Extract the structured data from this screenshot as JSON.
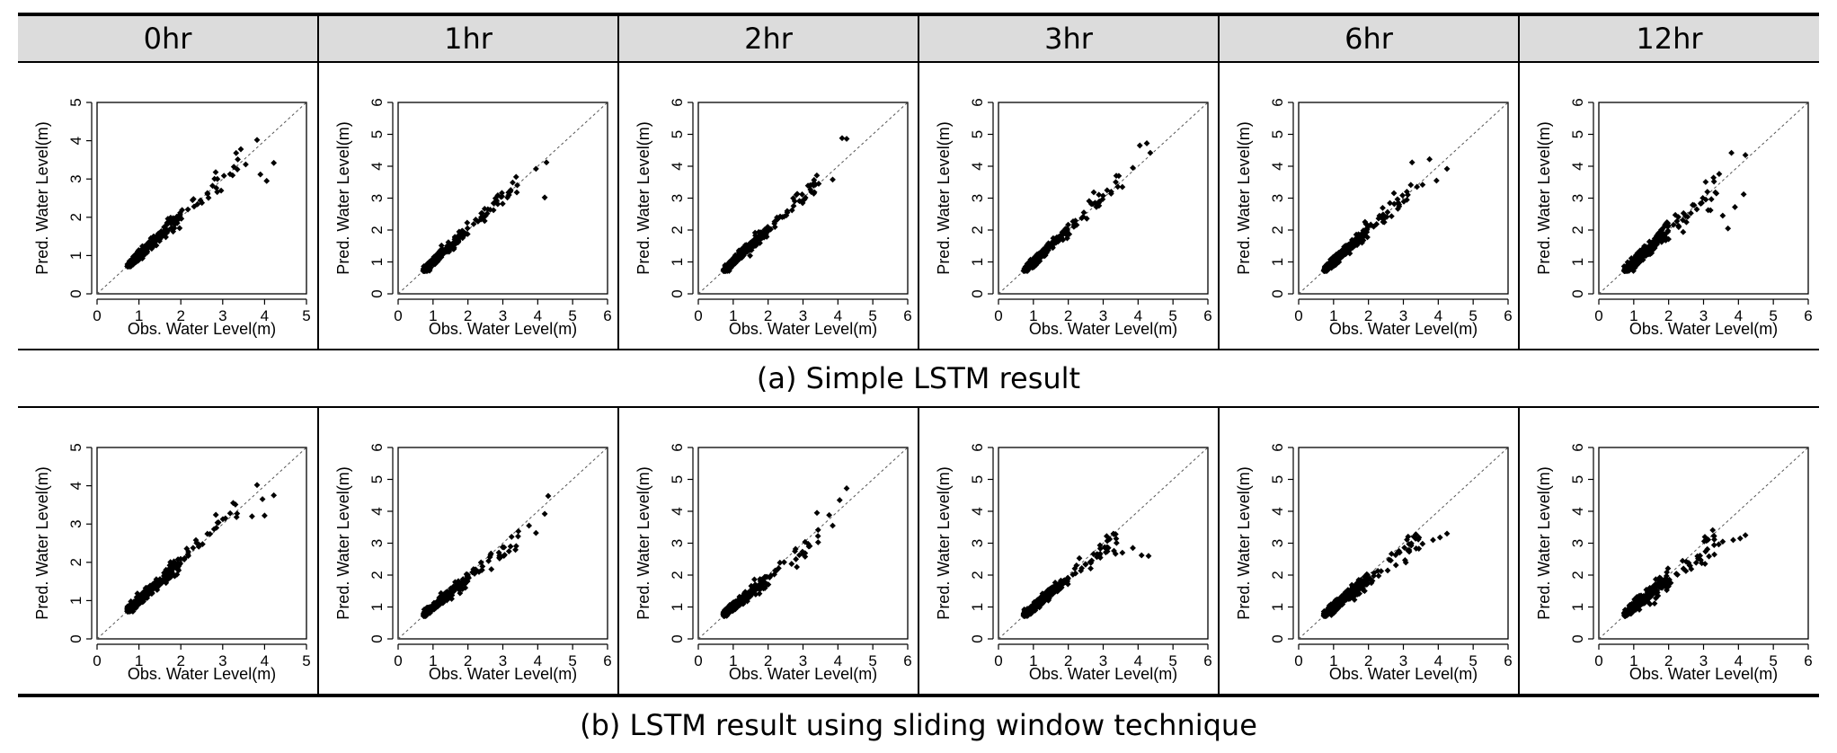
{
  "columns": [
    "0hr",
    "1hr",
    "2hr",
    "3hr",
    "6hr",
    "12hr"
  ],
  "captions": {
    "a": "(a) Simple LSTM result",
    "b": "(b) LSTM result using sliding window technique"
  },
  "chart_data": [
    {
      "id": "a-0hr",
      "panel": "a",
      "column": "0hr",
      "type": "scatter",
      "xlabel": "Obs. Water Level(m)",
      "ylabel": "Pred. Water Level(m)",
      "xlim": [
        0,
        5
      ],
      "ylim": [
        0,
        5
      ],
      "xticks": [
        0,
        1,
        2,
        3,
        4,
        5
      ],
      "yticks": [
        0,
        1,
        2,
        3,
        4,
        5
      ],
      "reference_line": "y = x (dashed)",
      "point_count": 320,
      "outliers": [
        [
          3.82,
          4.02
        ],
        [
          4.22,
          3.42
        ],
        [
          4.05,
          2.95
        ],
        [
          3.55,
          3.38
        ],
        [
          3.35,
          3.25
        ],
        [
          3.9,
          3.12
        ]
      ]
    },
    {
      "id": "a-1hr",
      "panel": "a",
      "column": "1hr",
      "type": "scatter",
      "xlabel": "Obs. Water Level(m)",
      "ylabel": "Pred. Water Level(m)",
      "xlim": [
        0,
        6
      ],
      "ylim": [
        0,
        6
      ],
      "xticks": [
        0,
        1,
        2,
        3,
        4,
        5,
        6
      ],
      "yticks": [
        0,
        1,
        2,
        3,
        4,
        5,
        6
      ],
      "reference_line": "y = x (dashed)",
      "point_count": 320,
      "outliers": [
        [
          4.25,
          4.12
        ],
        [
          3.95,
          3.92
        ],
        [
          4.2,
          3.02
        ],
        [
          3.4,
          3.18
        ]
      ]
    },
    {
      "id": "a-2hr",
      "panel": "a",
      "column": "2hr",
      "type": "scatter",
      "xlabel": "Obs. Water Level(m)",
      "ylabel": "Pred. Water Level(m)",
      "xlim": [
        0,
        6
      ],
      "ylim": [
        0,
        6
      ],
      "xticks": [
        0,
        1,
        2,
        3,
        4,
        5,
        6
      ],
      "yticks": [
        0,
        1,
        2,
        3,
        4,
        5,
        6
      ],
      "reference_line": "y = x (dashed)",
      "point_count": 320,
      "outliers": [
        [
          4.12,
          4.88
        ],
        [
          4.25,
          4.86
        ],
        [
          3.85,
          3.58
        ],
        [
          3.3,
          3.4
        ]
      ]
    },
    {
      "id": "a-3hr",
      "panel": "a",
      "column": "3hr",
      "type": "scatter",
      "xlabel": "Obs. Water Level(m)",
      "ylabel": "Pred. Water Level(m)",
      "xlim": [
        0,
        6
      ],
      "ylim": [
        0,
        6
      ],
      "xticks": [
        0,
        1,
        2,
        3,
        4,
        5,
        6
      ],
      "yticks": [
        0,
        1,
        2,
        3,
        4,
        5,
        6
      ],
      "reference_line": "y = x (dashed)",
      "point_count": 320,
      "outliers": [
        [
          4.05,
          4.65
        ],
        [
          4.25,
          4.72
        ],
        [
          4.35,
          4.42
        ],
        [
          3.85,
          3.95
        ],
        [
          3.55,
          3.35
        ]
      ]
    },
    {
      "id": "a-6hr",
      "panel": "a",
      "column": "6hr",
      "type": "scatter",
      "xlabel": "Obs. Water Level(m)",
      "ylabel": "Pred. Water Level(m)",
      "xlim": [
        0,
        6
      ],
      "ylim": [
        0,
        6
      ],
      "xticks": [
        0,
        1,
        2,
        3,
        4,
        5,
        6
      ],
      "yticks": [
        0,
        1,
        2,
        3,
        4,
        5,
        6
      ],
      "reference_line": "y = x (dashed)",
      "point_count": 320,
      "outliers": [
        [
          3.75,
          4.22
        ],
        [
          3.25,
          4.12
        ],
        [
          4.25,
          3.92
        ],
        [
          3.95,
          3.55
        ],
        [
          3.55,
          3.42
        ],
        [
          3.1,
          3.2
        ]
      ]
    },
    {
      "id": "a-12hr",
      "panel": "a",
      "column": "12hr",
      "type": "scatter",
      "xlabel": "Obs. Water Level(m)",
      "ylabel": "Pred. Water Level(m)",
      "xlim": [
        0,
        6
      ],
      "ylim": [
        0,
        6
      ],
      "xticks": [
        0,
        1,
        2,
        3,
        4,
        5,
        6
      ],
      "yticks": [
        0,
        1,
        2,
        3,
        4,
        5,
        6
      ],
      "reference_line": "y = x (dashed)",
      "point_count": 320,
      "outliers": [
        [
          3.8,
          4.42
        ],
        [
          4.2,
          4.35
        ],
        [
          3.3,
          3.52
        ],
        [
          4.15,
          3.12
        ],
        [
          3.55,
          2.45
        ],
        [
          3.7,
          2.05
        ],
        [
          3.2,
          2.62
        ],
        [
          2.95,
          2.85
        ],
        [
          3.9,
          2.72
        ]
      ]
    },
    {
      "id": "b-0hr",
      "panel": "b",
      "column": "0hr",
      "type": "scatter",
      "xlabel": "Obs. Water Level(m)",
      "ylabel": "Pred. Water Level(m)",
      "xlim": [
        0,
        5
      ],
      "ylim": [
        0,
        5
      ],
      "xticks": [
        0,
        1,
        2,
        3,
        4,
        5
      ],
      "yticks": [
        0,
        1,
        2,
        3,
        4,
        5
      ],
      "reference_line": "y = x (dashed)",
      "point_count": 320,
      "outliers": [
        [
          3.82,
          4.02
        ],
        [
          4.22,
          3.75
        ],
        [
          4.0,
          3.22
        ],
        [
          3.7,
          3.2
        ],
        [
          3.25,
          3.55
        ],
        [
          3.95,
          3.65
        ]
      ]
    },
    {
      "id": "b-1hr",
      "panel": "b",
      "column": "1hr",
      "type": "scatter",
      "xlabel": "Obs. Water Level(m)",
      "ylabel": "Pred. Water Level(m)",
      "xlim": [
        0,
        6
      ],
      "ylim": [
        0,
        6
      ],
      "xticks": [
        0,
        1,
        2,
        3,
        4,
        5,
        6
      ],
      "yticks": [
        0,
        1,
        2,
        3,
        4,
        5,
        6
      ],
      "reference_line": "y = x (dashed)",
      "point_count": 320,
      "outliers": [
        [
          4.3,
          4.48
        ],
        [
          4.2,
          3.92
        ],
        [
          3.75,
          3.55
        ],
        [
          3.95,
          3.32
        ]
      ]
    },
    {
      "id": "b-2hr",
      "panel": "b",
      "column": "2hr",
      "type": "scatter",
      "xlabel": "Obs. Water Level(m)",
      "ylabel": "Pred. Water Level(m)",
      "xlim": [
        0,
        6
      ],
      "ylim": [
        0,
        6
      ],
      "xticks": [
        0,
        1,
        2,
        3,
        4,
        5,
        6
      ],
      "yticks": [
        0,
        1,
        2,
        3,
        4,
        5,
        6
      ],
      "reference_line": "y = x (dashed)",
      "point_count": 320,
      "outliers": [
        [
          4.25,
          4.72
        ],
        [
          4.05,
          4.35
        ],
        [
          3.75,
          3.88
        ],
        [
          3.4,
          3.95
        ],
        [
          3.85,
          3.55
        ]
      ]
    },
    {
      "id": "b-3hr",
      "panel": "b",
      "column": "3hr",
      "type": "scatter",
      "xlabel": "Obs. Water Level(m)",
      "ylabel": "Pred. Water Level(m)",
      "xlim": [
        0,
        6
      ],
      "ylim": [
        0,
        6
      ],
      "xticks": [
        0,
        1,
        2,
        3,
        4,
        5,
        6
      ],
      "yticks": [
        0,
        1,
        2,
        3,
        4,
        5,
        6
      ],
      "reference_line": "y = x (dashed)",
      "point_count": 320,
      "outliers": [
        [
          4.3,
          2.6
        ],
        [
          4.1,
          2.62
        ],
        [
          3.85,
          2.85
        ],
        [
          3.1,
          3.22
        ],
        [
          3.55,
          2.7
        ]
      ]
    },
    {
      "id": "b-6hr",
      "panel": "b",
      "column": "6hr",
      "type": "scatter",
      "xlabel": "Obs. Water Level(m)",
      "ylabel": "Pred. Water Level(m)",
      "xlim": [
        0,
        6
      ],
      "ylim": [
        0,
        6
      ],
      "xticks": [
        0,
        1,
        2,
        3,
        4,
        5,
        6
      ],
      "yticks": [
        0,
        1,
        2,
        3,
        4,
        5,
        6
      ],
      "reference_line": "y = x (dashed)",
      "point_count": 320,
      "outliers": [
        [
          4.25,
          3.3
        ],
        [
          4.05,
          3.18
        ],
        [
          3.85,
          3.1
        ],
        [
          3.3,
          3.2
        ],
        [
          3.55,
          2.98
        ]
      ]
    },
    {
      "id": "b-12hr",
      "panel": "b",
      "column": "12hr",
      "type": "scatter",
      "xlabel": "Obs. Water Level(m)",
      "ylabel": "Pred. Water Level(m)",
      "xlim": [
        0,
        6
      ],
      "ylim": [
        0,
        6
      ],
      "xticks": [
        0,
        1,
        2,
        3,
        4,
        5,
        6
      ],
      "yticks": [
        0,
        1,
        2,
        3,
        4,
        5,
        6
      ],
      "reference_line": "y = x (dashed)",
      "point_count": 320,
      "outliers": [
        [
          4.2,
          3.25
        ],
        [
          4.05,
          3.15
        ],
        [
          3.85,
          3.1
        ],
        [
          3.3,
          3.22
        ],
        [
          3.55,
          3.05
        ]
      ]
    }
  ]
}
